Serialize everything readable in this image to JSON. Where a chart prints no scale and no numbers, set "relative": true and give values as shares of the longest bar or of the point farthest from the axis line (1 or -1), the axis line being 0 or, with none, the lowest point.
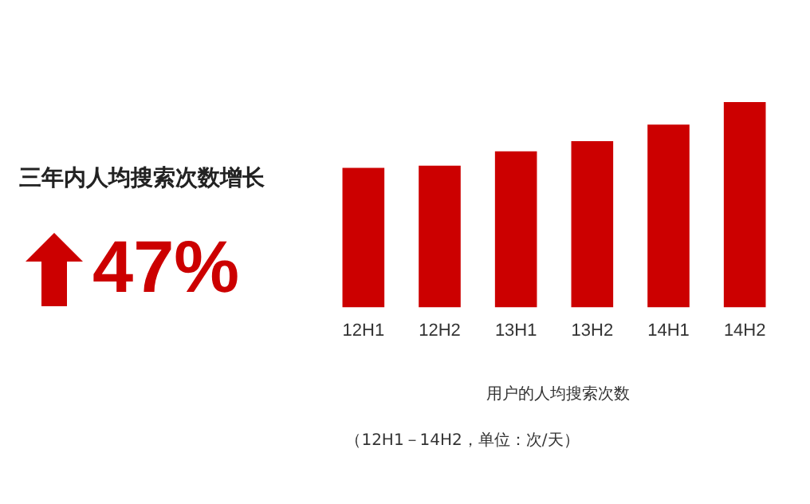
{
  "chart_data": {
    "type": "bar",
    "relative": true,
    "title": "用户的人均搜索次数",
    "subtitle": "（12H1－14H2，单位：次/天）",
    "categories": [
      "12H1",
      "12H2",
      "13H1",
      "13H2",
      "14H1",
      "14H2"
    ],
    "values": [
      0.68,
      0.69,
      0.76,
      0.81,
      0.89,
      1
    ],
    "color": "#cc0000",
    "grid": false,
    "legend": false,
    "annotations": [
      "三年内人均搜索次数增长",
      "47%"
    ]
  }
}
